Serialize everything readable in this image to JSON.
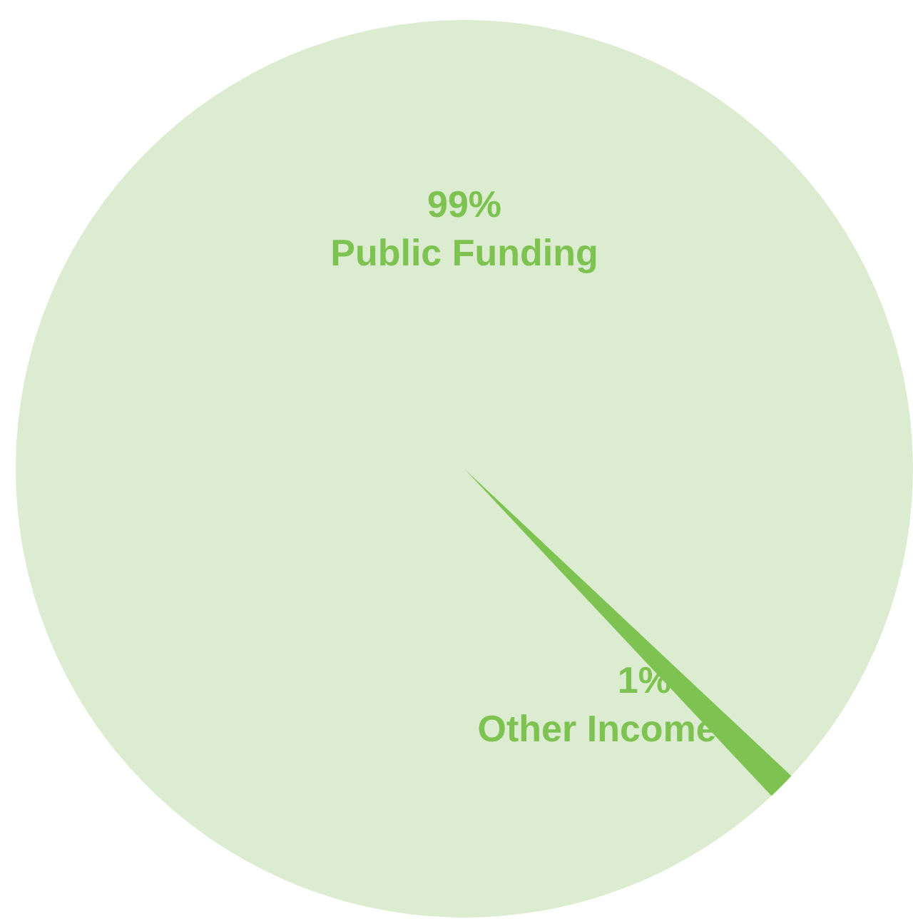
{
  "chart_data": {
    "type": "pie",
    "categories": [
      "Public Funding",
      "Other Income"
    ],
    "values": [
      99,
      1
    ],
    "value_labels": [
      "99%",
      "1%"
    ],
    "colors": [
      "#dcecd0",
      "#7ec352"
    ]
  }
}
